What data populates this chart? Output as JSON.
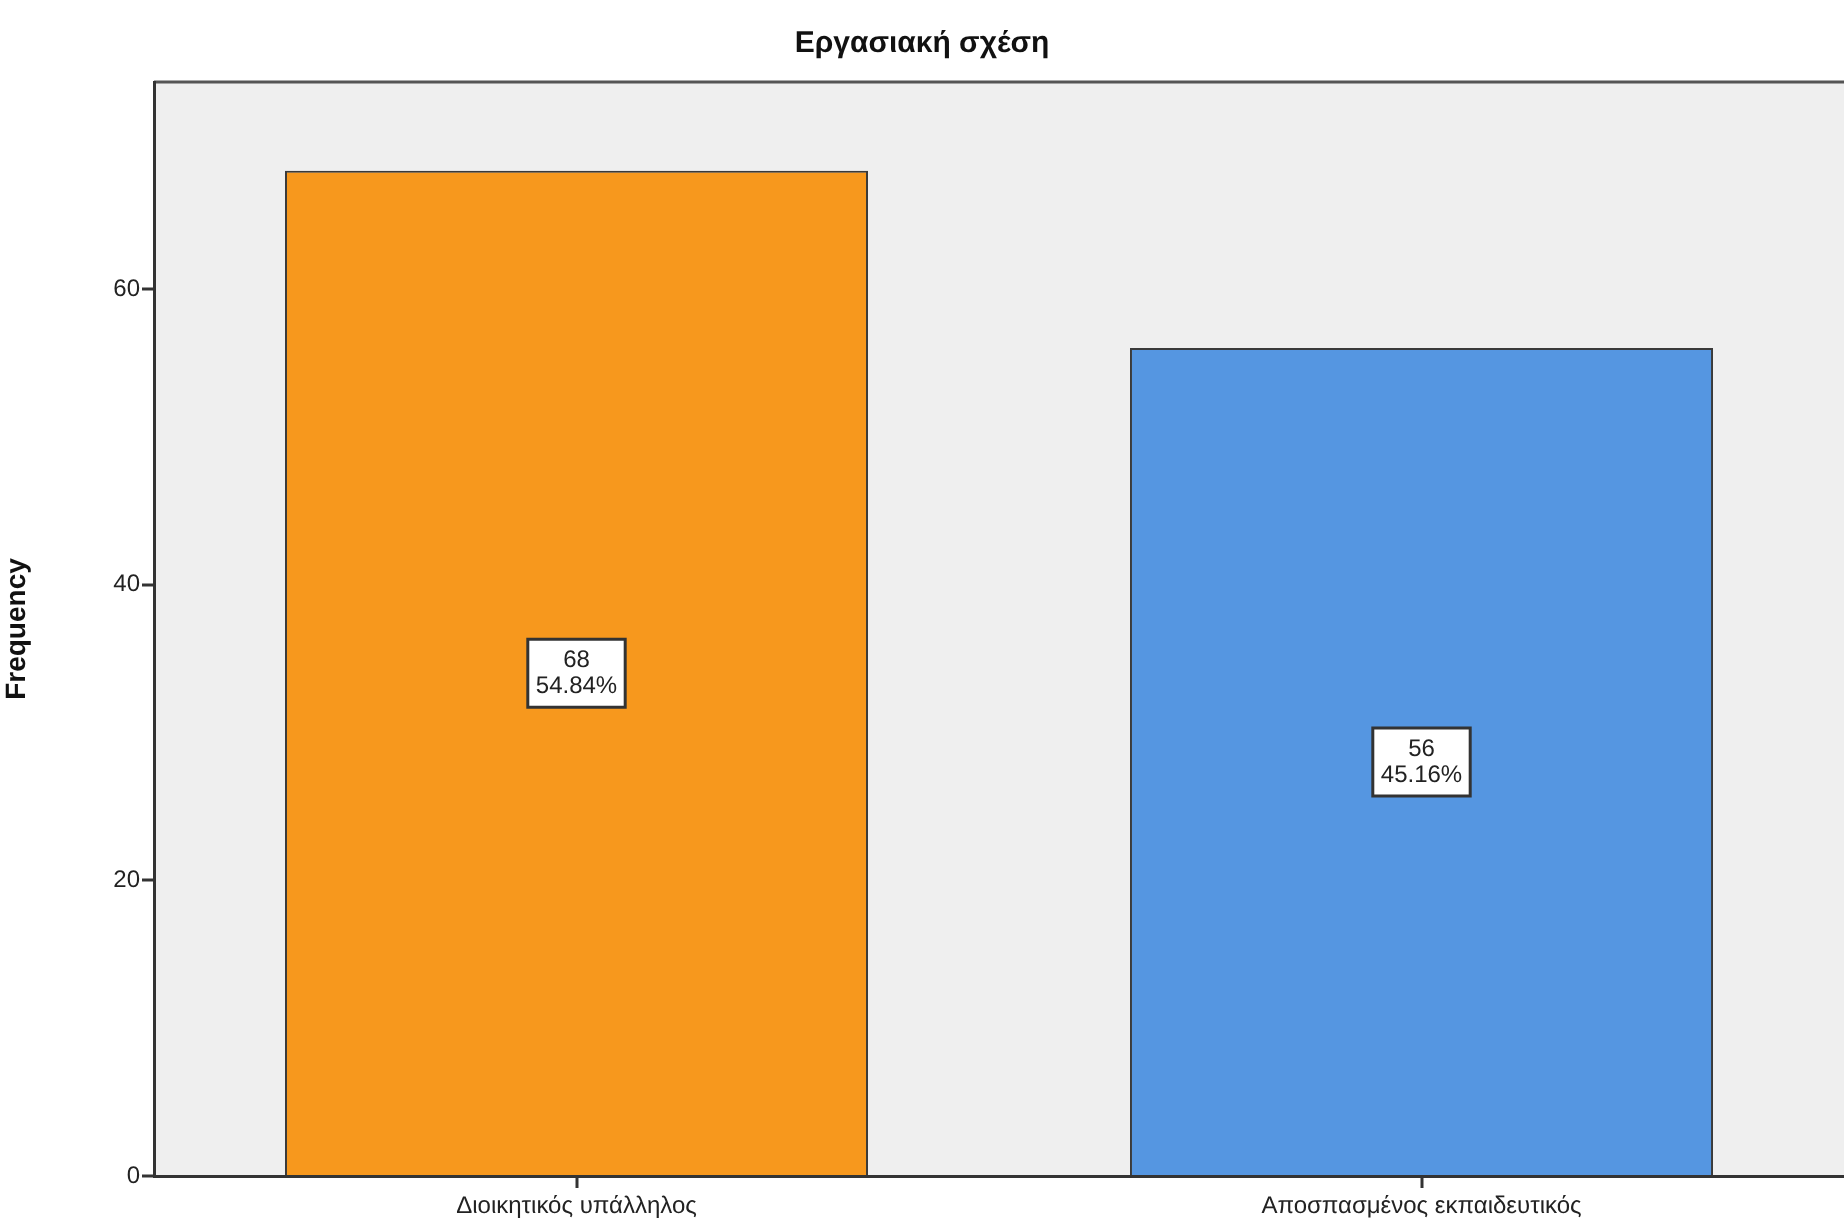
{
  "chart_data": {
    "type": "bar",
    "title": "Εργασιακή σχέση",
    "ylabel": "Frequency",
    "categories": [
      "Διοικητικός υπάλληλος",
      "Αποσπασμένος εκπαιδευτικός"
    ],
    "values": [
      68,
      56
    ],
    "colors": [
      "#f7981d",
      "#5596e1"
    ],
    "value_labels": [
      "68\n54.84%",
      "56\n45.16%"
    ],
    "ylim": [
      0,
      74
    ],
    "yticks": [
      0,
      20,
      40,
      60
    ]
  }
}
